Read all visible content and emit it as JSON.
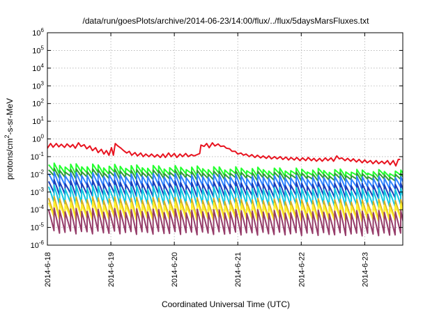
{
  "chart_data": {
    "type": "line",
    "title": "/data/run/goesPlots/archive/2014-06-23/14:00/flux/../flux/5daysMarsFluxes.txt",
    "xlabel": "Coordinated Universal Time (UTC)",
    "ylabel": "protons/cm²-s-sr-MeV",
    "ylabel_parts": {
      "pre": "protons/cm",
      "sup": "2",
      "post": "-s-sr-MeV"
    },
    "x_unit": "days since 2014-06-18 00:00 UTC",
    "xlim": [
      0,
      5.6
    ],
    "ylim": [
      1e-06,
      1000000.0
    ],
    "yscale": "log",
    "grid": true,
    "x_ticks": [
      {
        "value": 0,
        "label": "2014-6-18"
      },
      {
        "value": 1,
        "label": "2014-6-19"
      },
      {
        "value": 2,
        "label": "2014-6-20"
      },
      {
        "value": 3,
        "label": "2014-6-21"
      },
      {
        "value": 4,
        "label": "2014-6-22"
      },
      {
        "value": 5,
        "label": "2014-6-23"
      }
    ],
    "y_ticks": [
      {
        "value": 1e-06,
        "base": "10",
        "exp": "-6"
      },
      {
        "value": 1e-05,
        "base": "10",
        "exp": "-5"
      },
      {
        "value": 0.0001,
        "base": "10",
        "exp": "-4"
      },
      {
        "value": 0.001,
        "base": "10",
        "exp": "-3"
      },
      {
        "value": 0.01,
        "base": "10",
        "exp": "-2"
      },
      {
        "value": 0.1,
        "base": "10",
        "exp": "-1"
      },
      {
        "value": 1.0,
        "base": "10",
        "exp": "0"
      },
      {
        "value": 10.0,
        "base": "10",
        "exp": "1"
      },
      {
        "value": 100.0,
        "base": "10",
        "exp": "2"
      },
      {
        "value": 1000.0,
        "base": "10",
        "exp": "3"
      },
      {
        "value": 10000.0,
        "base": "10",
        "exp": "4"
      },
      {
        "value": 100000.0,
        "base": "10",
        "exp": "5"
      },
      {
        "value": 1000000.0,
        "base": "10",
        "exp": "6"
      }
    ],
    "series": [
      {
        "color": "#e8131f",
        "points": [
          [
            0.0,
            0.3
          ],
          [
            0.05,
            0.55
          ],
          [
            0.09,
            0.34
          ],
          [
            0.14,
            0.55
          ],
          [
            0.18,
            0.36
          ],
          [
            0.22,
            0.5
          ],
          [
            0.27,
            0.33
          ],
          [
            0.31,
            0.52
          ],
          [
            0.36,
            0.35
          ],
          [
            0.4,
            0.48
          ],
          [
            0.44,
            0.3
          ],
          [
            0.49,
            0.6
          ],
          [
            0.53,
            0.38
          ],
          [
            0.58,
            0.47
          ],
          [
            0.62,
            0.28
          ],
          [
            0.67,
            0.4
          ],
          [
            0.71,
            0.22
          ],
          [
            0.76,
            0.32
          ],
          [
            0.8,
            0.17
          ],
          [
            0.85,
            0.26
          ],
          [
            0.89,
            0.14
          ],
          [
            0.93,
            0.22
          ],
          [
            0.97,
            0.12
          ],
          [
            1.01,
            0.32
          ],
          [
            1.04,
            0.12
          ],
          [
            1.07,
            0.55
          ],
          [
            1.11,
            0.4
          ],
          [
            1.16,
            0.3
          ],
          [
            1.2,
            0.22
          ],
          [
            1.25,
            0.16
          ],
          [
            1.29,
            0.2
          ],
          [
            1.33,
            0.12
          ],
          [
            1.38,
            0.17
          ],
          [
            1.42,
            0.11
          ],
          [
            1.47,
            0.16
          ],
          [
            1.51,
            0.1
          ],
          [
            1.55,
            0.14
          ],
          [
            1.6,
            0.1
          ],
          [
            1.64,
            0.14
          ],
          [
            1.69,
            0.095
          ],
          [
            1.73,
            0.13
          ],
          [
            1.78,
            0.09
          ],
          [
            1.82,
            0.14
          ],
          [
            1.86,
            0.09
          ],
          [
            1.91,
            0.16
          ],
          [
            1.95,
            0.1
          ],
          [
            2.0,
            0.15
          ],
          [
            2.04,
            0.09
          ],
          [
            2.09,
            0.14
          ],
          [
            2.13,
            0.1
          ],
          [
            2.18,
            0.15
          ],
          [
            2.22,
            0.1
          ],
          [
            2.27,
            0.13
          ],
          [
            2.31,
            0.11
          ],
          [
            2.36,
            0.13
          ],
          [
            2.4,
            0.15
          ],
          [
            2.42,
            0.45
          ],
          [
            2.47,
            0.38
          ],
          [
            2.51,
            0.55
          ],
          [
            2.55,
            0.32
          ],
          [
            2.6,
            0.6
          ],
          [
            2.64,
            0.4
          ],
          [
            2.69,
            0.52
          ],
          [
            2.73,
            0.38
          ],
          [
            2.78,
            0.4
          ],
          [
            2.82,
            0.3
          ],
          [
            2.87,
            0.28
          ],
          [
            2.91,
            0.2
          ],
          [
            2.96,
            0.2
          ],
          [
            3.0,
            0.14
          ],
          [
            3.05,
            0.16
          ],
          [
            3.09,
            0.12
          ],
          [
            3.13,
            0.14
          ],
          [
            3.18,
            0.1
          ],
          [
            3.22,
            0.13
          ],
          [
            3.27,
            0.09
          ],
          [
            3.31,
            0.12
          ],
          [
            3.36,
            0.085
          ],
          [
            3.4,
            0.11
          ],
          [
            3.45,
            0.08
          ],
          [
            3.49,
            0.11
          ],
          [
            3.53,
            0.075
          ],
          [
            3.58,
            0.1
          ],
          [
            3.62,
            0.075
          ],
          [
            3.67,
            0.1
          ],
          [
            3.71,
            0.07
          ],
          [
            3.76,
            0.095
          ],
          [
            3.8,
            0.065
          ],
          [
            3.84,
            0.09
          ],
          [
            3.89,
            0.065
          ],
          [
            3.93,
            0.09
          ],
          [
            3.98,
            0.06
          ],
          [
            4.02,
            0.085
          ],
          [
            4.07,
            0.06
          ],
          [
            4.11,
            0.09
          ],
          [
            4.16,
            0.06
          ],
          [
            4.2,
            0.08
          ],
          [
            4.24,
            0.055
          ],
          [
            4.29,
            0.08
          ],
          [
            4.33,
            0.055
          ],
          [
            4.38,
            0.085
          ],
          [
            4.42,
            0.06
          ],
          [
            4.47,
            0.085
          ],
          [
            4.51,
            0.055
          ],
          [
            4.56,
            0.11
          ],
          [
            4.6,
            0.075
          ],
          [
            4.64,
            0.085
          ],
          [
            4.69,
            0.06
          ],
          [
            4.73,
            0.08
          ],
          [
            4.78,
            0.055
          ],
          [
            4.82,
            0.075
          ],
          [
            4.87,
            0.05
          ],
          [
            4.91,
            0.07
          ],
          [
            4.96,
            0.045
          ],
          [
            5.0,
            0.065
          ],
          [
            5.04,
            0.045
          ],
          [
            5.09,
            0.06
          ],
          [
            5.13,
            0.04
          ],
          [
            5.18,
            0.06
          ],
          [
            5.22,
            0.04
          ],
          [
            5.27,
            0.055
          ],
          [
            5.31,
            0.04
          ],
          [
            5.36,
            0.06
          ],
          [
            5.4,
            0.035
          ],
          [
            5.45,
            0.06
          ],
          [
            5.49,
            0.03
          ],
          [
            5.53,
            0.07
          ],
          [
            5.56,
            0.07
          ]
        ]
      },
      {
        "color": "#22ff2e",
        "pattern": {
          "start": 0.02,
          "step": 0.0867,
          "high": [
            0.035,
            0.014
          ],
          "low": [
            0.012,
            0.0075
          ]
        }
      },
      {
        "color": "#2e9c35",
        "pattern": {
          "start": 0.02,
          "step": 0.0867,
          "high": [
            0.018,
            0.009
          ],
          "low": [
            0.007,
            0.0045
          ]
        }
      },
      {
        "color": "#2e82ff",
        "pattern": {
          "start": 0.02,
          "step": 0.0867,
          "high": [
            0.011,
            0.006
          ],
          "low": [
            0.0024,
            0.0016
          ]
        }
      },
      {
        "color": "#1a3fbb",
        "pattern": {
          "start": 0.02,
          "step": 0.0867,
          "high": [
            0.004,
            0.0025
          ],
          "low": [
            0.00075,
            0.0005
          ]
        }
      },
      {
        "color": "#12c8e0",
        "pattern": {
          "start": 0.02,
          "step": 0.0867,
          "high": [
            0.002,
            0.0013
          ],
          "low": [
            0.00022,
            0.00016
          ]
        }
      },
      {
        "color": "#d9b023",
        "pattern": {
          "start": 0.02,
          "step": 0.0867,
          "high": [
            0.00045,
            0.0003
          ],
          "low": [
            4e-05,
            3e-05
          ]
        }
      },
      {
        "color": "#fff02a",
        "pattern": {
          "start": 0.02,
          "step": 0.0867,
          "high": [
            0.00025,
            0.00018
          ],
          "low": [
            3.2e-05,
            2.5e-05
          ]
        }
      },
      {
        "color": "#963d6a",
        "pattern": {
          "start": 0.02,
          "step": 0.0867,
          "high": [
            0.0001,
            7e-05
          ],
          "low": [
            5.5e-06,
            4e-06
          ]
        }
      }
    ]
  }
}
